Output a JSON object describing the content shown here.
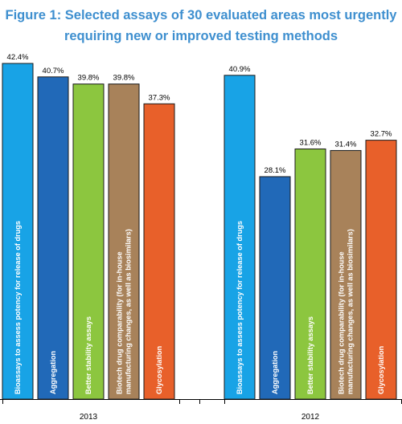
{
  "chart_data": {
    "type": "bar",
    "title_lines": [
      "Figure 1: Selected assays of 30 evaluated areas most urgently",
      "requiring new or improved testing methods"
    ],
    "categories": [
      [
        "Bioassays to assess potency for release of drugs"
      ],
      [
        "Aggregation"
      ],
      [
        "Better stability assays"
      ],
      [
        "Biotech drug comparability (for in-house",
        "manufacturing changes, as well as biosimilars)"
      ],
      [
        "Glycosylation"
      ]
    ],
    "colors": [
      "#18a3e6",
      "#2169b8",
      "#8cc63f",
      "#a8825a",
      "#e8602a"
    ],
    "groups": [
      {
        "name": "2013",
        "values": [
          42.4,
          40.7,
          39.8,
          39.8,
          37.3
        ],
        "value_labels": [
          "42.4%",
          "40.7%",
          "39.8%",
          "39.8%",
          "37.3%"
        ]
      },
      {
        "name": "2012",
        "values": [
          40.9,
          28.1,
          31.6,
          31.4,
          32.7
        ],
        "value_labels": [
          "40.9%",
          "28.1%",
          "31.6%",
          "31.4%",
          "32.7%"
        ]
      }
    ],
    "ylim": [
      0,
      45
    ],
    "grid": false,
    "legend": "none"
  }
}
